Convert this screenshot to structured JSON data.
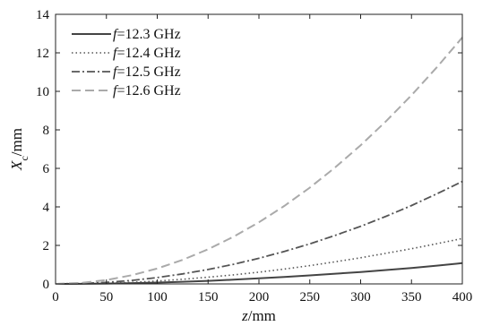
{
  "chart_data": {
    "type": "line",
    "xlabel_var": "z",
    "xlabel_unit": "/mm",
    "ylabel_var": "X",
    "ylabel_sub": "c",
    "ylabel_unit": "/mm",
    "xlim": [
      0,
      400
    ],
    "ylim": [
      0,
      14
    ],
    "xticks": [
      0,
      50,
      100,
      150,
      200,
      250,
      300,
      350,
      400
    ],
    "yticks": [
      0,
      2,
      4,
      6,
      8,
      10,
      12,
      14
    ],
    "grid": false,
    "legend_position": "top-left",
    "x": [
      0,
      25,
      50,
      75,
      100,
      125,
      150,
      175,
      200,
      225,
      250,
      275,
      300,
      325,
      350,
      375,
      400
    ],
    "series": [
      {
        "name_var": "f",
        "name_value": "=12.3 GHz",
        "style": "solid",
        "color": "#444444",
        "values": [
          0,
          0.004,
          0.017,
          0.04,
          0.07,
          0.11,
          0.16,
          0.22,
          0.29,
          0.36,
          0.44,
          0.53,
          0.62,
          0.72,
          0.83,
          0.95,
          1.08
        ]
      },
      {
        "name_var": "f",
        "name_value": "=12.4 GHz",
        "style": "dotted",
        "color": "#555555",
        "values": [
          0,
          0.01,
          0.04,
          0.08,
          0.15,
          0.24,
          0.35,
          0.47,
          0.61,
          0.77,
          0.95,
          1.15,
          1.36,
          1.59,
          1.83,
          2.09,
          2.36
        ]
      },
      {
        "name_var": "f",
        "name_value": "=12.5 GHz",
        "style": "dashdot",
        "color": "#555555",
        "values": [
          0,
          0.02,
          0.08,
          0.18,
          0.33,
          0.52,
          0.75,
          1.02,
          1.33,
          1.69,
          2.08,
          2.52,
          2.99,
          3.51,
          4.07,
          4.68,
          5.32
        ]
      },
      {
        "name_var": "f",
        "name_value": "=12.6 GHz",
        "style": "dashed",
        "color": "#aaaaaa",
        "values": [
          0,
          0.05,
          0.2,
          0.45,
          0.8,
          1.25,
          1.8,
          2.45,
          3.2,
          4.05,
          5.0,
          6.05,
          7.2,
          8.45,
          9.8,
          11.25,
          12.8
        ]
      }
    ]
  }
}
